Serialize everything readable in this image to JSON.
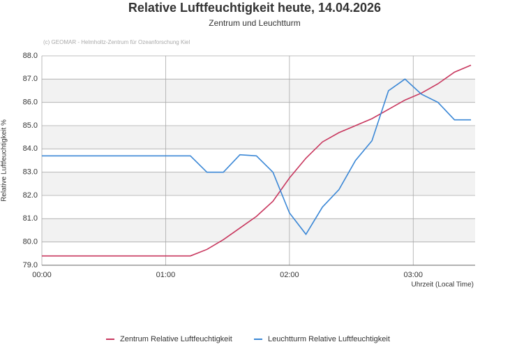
{
  "chart_data": {
    "type": "line",
    "title": "Relative Luftfeuchtigkeit heute, 14.04.2026",
    "subtitle": "Zentrum und Leuchtturm",
    "credit": "(c) GEOMAR - Helmholtz-Zentrum für Ozeanforschung Kiel",
    "x_label": "Uhrzeit (Local Time)",
    "y_label": "Relative Luftfeuchtigkeit %",
    "x": [
      0,
      72,
      80,
      88,
      96,
      104,
      112,
      120,
      128,
      136,
      144,
      152,
      160,
      168,
      176,
      184,
      192,
      200,
      208
    ],
    "series": [
      {
        "name": "Zentrum Relative Luftfeuchtigkeit",
        "color": "#c8375e",
        "values": [
          79.4,
          79.4,
          79.68,
          80.1,
          80.6,
          81.1,
          81.75,
          82.75,
          83.6,
          84.3,
          84.7,
          85.0,
          85.3,
          85.7,
          86.1,
          86.4,
          86.8,
          87.3,
          87.6
        ]
      },
      {
        "name": "Leuchtturm Relative Luftfeuchtigkeit",
        "color": "#3a87d6",
        "values": [
          83.7,
          83.7,
          83.0,
          83.0,
          83.75,
          83.7,
          83.0,
          81.25,
          80.33,
          81.5,
          82.25,
          83.5,
          84.35,
          86.5,
          87.0,
          86.35,
          86.0,
          85.25,
          85.25
        ]
      }
    ],
    "xlim": [
      0,
      210
    ],
    "xticks": [
      {
        "value": 0,
        "label": "00:00"
      },
      {
        "value": 60,
        "label": "01:00"
      },
      {
        "value": 120,
        "label": "02:00"
      },
      {
        "value": 180,
        "label": "03:00"
      }
    ],
    "ylim": [
      79,
      88
    ],
    "yticks": [
      {
        "value": 79,
        "label": "79.0"
      },
      {
        "value": 80,
        "label": "80.0"
      },
      {
        "value": 81,
        "label": "81.0"
      },
      {
        "value": 82,
        "label": "82.0"
      },
      {
        "value": 83,
        "label": "83.0"
      },
      {
        "value": 84,
        "label": "84.0"
      },
      {
        "value": 85,
        "label": "85.0"
      },
      {
        "value": 86,
        "label": "86.0"
      },
      {
        "value": 87,
        "label": "87.0"
      },
      {
        "value": 88,
        "label": "88.0"
      }
    ],
    "grid": true,
    "legend": "bottom"
  }
}
